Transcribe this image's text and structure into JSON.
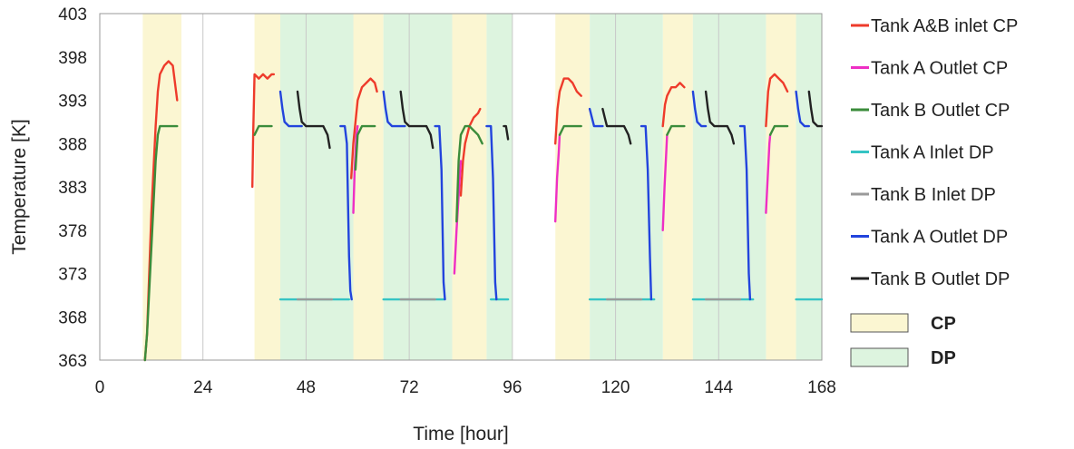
{
  "chart_data": {
    "type": "line",
    "title": "",
    "xlabel": "Time [hour]",
    "ylabel": "Temperature [K]",
    "xlim": [
      0,
      168
    ],
    "ylim": [
      363,
      403
    ],
    "xticks": [
      0,
      24,
      48,
      72,
      96,
      120,
      144,
      168
    ],
    "yticks": [
      363,
      368,
      373,
      378,
      383,
      388,
      393,
      398,
      403
    ],
    "grid": "vertical",
    "legend_position": "right",
    "bands": [
      {
        "name": "CP",
        "color": "#fbf6d2",
        "intervals": [
          [
            10,
            19
          ],
          [
            36,
            42
          ],
          [
            59,
            66
          ],
          [
            82,
            90
          ],
          [
            106,
            114
          ],
          [
            131,
            138
          ],
          [
            155,
            162
          ]
        ]
      },
      {
        "name": "DP",
        "color": "#ddf4df",
        "intervals": [
          [
            42,
            59
          ],
          [
            66,
            82
          ],
          [
            90,
            96
          ],
          [
            114,
            131
          ],
          [
            138,
            155
          ],
          [
            162,
            168
          ]
        ]
      }
    ],
    "series": [
      {
        "name": "Tank A&B inlet  CP",
        "color": "#ee3b2b",
        "segments": [
          [
            [
              10.5,
              363
            ],
            [
              11,
              366
            ],
            [
              12,
              380
            ],
            [
              13,
              390
            ],
            [
              13.5,
              394
            ],
            [
              14,
              396
            ],
            [
              15,
              397
            ],
            [
              16,
              397.5
            ],
            [
              17,
              397
            ],
            [
              17.5,
              395
            ],
            [
              18,
              393
            ]
          ],
          [
            [
              35.5,
              383
            ],
            [
              35.7,
              389
            ],
            [
              36,
              396
            ],
            [
              37,
              395.5
            ],
            [
              38,
              396
            ],
            [
              39,
              395.5
            ],
            [
              40,
              396
            ],
            [
              40.5,
              396
            ]
          ],
          [
            [
              58.5,
              384
            ],
            [
              59,
              388
            ],
            [
              60,
              393
            ],
            [
              61,
              394.5
            ],
            [
              62,
              395
            ],
            [
              63,
              395.5
            ],
            [
              64,
              395
            ],
            [
              64.5,
              394
            ]
          ],
          [
            [
              84,
              382
            ],
            [
              84.5,
              386
            ],
            [
              85,
              388
            ],
            [
              86,
              390
            ],
            [
              87,
              391
            ],
            [
              88,
              391.5
            ],
            [
              88.5,
              392
            ]
          ],
          [
            [
              106,
              388
            ],
            [
              106.5,
              392
            ],
            [
              107,
              394
            ],
            [
              108,
              395.5
            ],
            [
              109,
              395.5
            ],
            [
              110,
              395
            ],
            [
              111,
              394
            ],
            [
              112,
              393.5
            ]
          ],
          [
            [
              131,
              390
            ],
            [
              131.5,
              392.5
            ],
            [
              132,
              393.5
            ],
            [
              133,
              394.5
            ],
            [
              134,
              394.5
            ],
            [
              135,
              395
            ],
            [
              136,
              394.5
            ]
          ],
          [
            [
              155,
              390
            ],
            [
              155.5,
              394
            ],
            [
              156,
              395.5
            ],
            [
              157,
              396
            ],
            [
              158,
              395.5
            ],
            [
              159,
              395
            ],
            [
              160,
              394
            ]
          ]
        ]
      },
      {
        "name": "Tank A Outlet CP",
        "color": "#ee2fc4",
        "segments": [
          [
            [
              59,
              380
            ],
            [
              59.3,
              385
            ],
            [
              59.7,
              389
            ],
            [
              60,
              390
            ]
          ],
          [
            [
              82.5,
              373
            ],
            [
              83,
              378
            ],
            [
              83.5,
              382
            ],
            [
              84,
              386
            ]
          ],
          [
            [
              106,
              379
            ],
            [
              106.4,
              384
            ],
            [
              106.8,
              387
            ],
            [
              107,
              389
            ]
          ],
          [
            [
              131,
              378
            ],
            [
              131.4,
              383
            ],
            [
              131.8,
              387
            ],
            [
              132,
              389
            ]
          ],
          [
            [
              155,
              380
            ],
            [
              155.4,
              384
            ],
            [
              155.8,
              388
            ],
            [
              156,
              389
            ]
          ]
        ]
      },
      {
        "name": "Tank B Outlet CP",
        "color": "#3b8c3b",
        "segments": [
          [
            [
              10.5,
              363
            ],
            [
              11,
              366
            ],
            [
              12,
              376
            ],
            [
              13,
              386
            ],
            [
              13.5,
              389
            ],
            [
              14,
              390
            ],
            [
              16,
              390
            ],
            [
              18,
              390
            ]
          ],
          [
            [
              36,
              389
            ],
            [
              37,
              390
            ],
            [
              38,
              390
            ],
            [
              40,
              390
            ]
          ],
          [
            [
              59.5,
              385
            ],
            [
              60,
              389
            ],
            [
              61,
              390
            ],
            [
              64,
              390
            ]
          ],
          [
            [
              83,
              379
            ],
            [
              83.5,
              386
            ],
            [
              84,
              389
            ],
            [
              85,
              390
            ],
            [
              86,
              390
            ],
            [
              87,
              389.5
            ],
            [
              88,
              389
            ],
            [
              89,
              388
            ]
          ],
          [
            [
              107,
              389
            ],
            [
              108,
              390
            ],
            [
              110,
              390
            ],
            [
              112,
              390
            ]
          ],
          [
            [
              132,
              389
            ],
            [
              133,
              390
            ],
            [
              135,
              390
            ],
            [
              136,
              390
            ]
          ],
          [
            [
              156,
              389
            ],
            [
              157,
              390
            ],
            [
              159,
              390
            ],
            [
              160,
              390
            ]
          ]
        ]
      },
      {
        "name": "Tank A Inlet DP",
        "color": "#35c4c4",
        "segments": [
          [
            [
              42,
              370
            ],
            [
              58,
              370
            ]
          ],
          [
            [
              66,
              370
            ],
            [
              80,
              370
            ]
          ],
          [
            [
              91,
              370
            ],
            [
              95,
              370
            ]
          ],
          [
            [
              114,
              370
            ],
            [
              129,
              370
            ]
          ],
          [
            [
              138,
              370
            ],
            [
              152,
              370
            ]
          ],
          [
            [
              162,
              370
            ],
            [
              168,
              370
            ]
          ]
        ]
      },
      {
        "name": "Tank B Inlet DP",
        "color": "#9a9a9a",
        "segments": [
          [
            [
              46,
              370
            ],
            [
              54,
              370
            ]
          ],
          [
            [
              70,
              370
            ],
            [
              78,
              370
            ]
          ],
          [
            [
              118,
              370
            ],
            [
              126,
              370
            ]
          ],
          [
            [
              141,
              370
            ],
            [
              149,
              370
            ]
          ]
        ]
      },
      {
        "name": "Tank A Outlet DP",
        "color": "#2244dd",
        "segments": [
          [
            [
              42,
              394
            ],
            [
              42.5,
              392
            ],
            [
              43,
              390.5
            ],
            [
              44,
              390
            ],
            [
              46,
              390
            ],
            [
              47,
              390
            ]
          ],
          [
            [
              56,
              390
            ],
            [
              57,
              390
            ],
            [
              57.5,
              388
            ],
            [
              58,
              375
            ],
            [
              58.3,
              371
            ],
            [
              58.6,
              370
            ]
          ],
          [
            [
              66,
              394
            ],
            [
              66.5,
              392
            ],
            [
              67,
              390.5
            ],
            [
              68,
              390
            ],
            [
              70,
              390
            ],
            [
              71,
              390
            ]
          ],
          [
            [
              78,
              390
            ],
            [
              79,
              390
            ],
            [
              79.5,
              385
            ],
            [
              80,
              372
            ],
            [
              80.3,
              370
            ]
          ],
          [
            [
              90,
              390
            ],
            [
              91,
              390
            ],
            [
              91.5,
              384
            ],
            [
              92,
              372
            ],
            [
              92.3,
              370
            ]
          ],
          [
            [
              114,
              392
            ],
            [
              114.5,
              391
            ],
            [
              115,
              390
            ],
            [
              116,
              390
            ],
            [
              117,
              390
            ]
          ],
          [
            [
              126,
              390
            ],
            [
              127,
              390
            ],
            [
              127.5,
              385
            ],
            [
              128,
              375
            ],
            [
              128.3,
              370
            ]
          ],
          [
            [
              138,
              394
            ],
            [
              138.5,
              392
            ],
            [
              139,
              390.5
            ],
            [
              140,
              390
            ],
            [
              141,
              390
            ]
          ],
          [
            [
              149,
              390
            ],
            [
              150,
              390
            ],
            [
              150.5,
              385
            ],
            [
              151,
              373
            ],
            [
              151.3,
              370
            ]
          ],
          [
            [
              162,
              394
            ],
            [
              162.5,
              392
            ],
            [
              163,
              390.5
            ],
            [
              164,
              390
            ],
            [
              165,
              390
            ]
          ]
        ]
      },
      {
        "name": "Tank B Outlet DP",
        "color": "#222222",
        "segments": [
          [
            [
              46,
              394
            ],
            [
              46.5,
              392
            ],
            [
              47,
              390.5
            ],
            [
              48,
              390
            ],
            [
              52,
              390
            ],
            [
              53,
              389
            ],
            [
              53.5,
              387.5
            ]
          ],
          [
            [
              70,
              394
            ],
            [
              70.5,
              392
            ],
            [
              71,
              390.5
            ],
            [
              72,
              390
            ],
            [
              76,
              390
            ],
            [
              77,
              389
            ],
            [
              77.5,
              387.5
            ]
          ],
          [
            [
              94,
              390
            ],
            [
              94.5,
              390
            ],
            [
              95,
              388.5
            ]
          ],
          [
            [
              117,
              392
            ],
            [
              117.5,
              391
            ],
            [
              118,
              390
            ],
            [
              122,
              390
            ],
            [
              123,
              389
            ],
            [
              123.5,
              388
            ]
          ],
          [
            [
              141,
              394
            ],
            [
              141.5,
              392
            ],
            [
              142,
              390.5
            ],
            [
              143,
              390
            ],
            [
              146,
              390
            ],
            [
              147,
              389
            ],
            [
              147.5,
              388
            ]
          ],
          [
            [
              165,
              394
            ],
            [
              165.5,
              392
            ],
            [
              166,
              390.5
            ],
            [
              167,
              390
            ],
            [
              168,
              390
            ]
          ]
        ]
      }
    ]
  }
}
